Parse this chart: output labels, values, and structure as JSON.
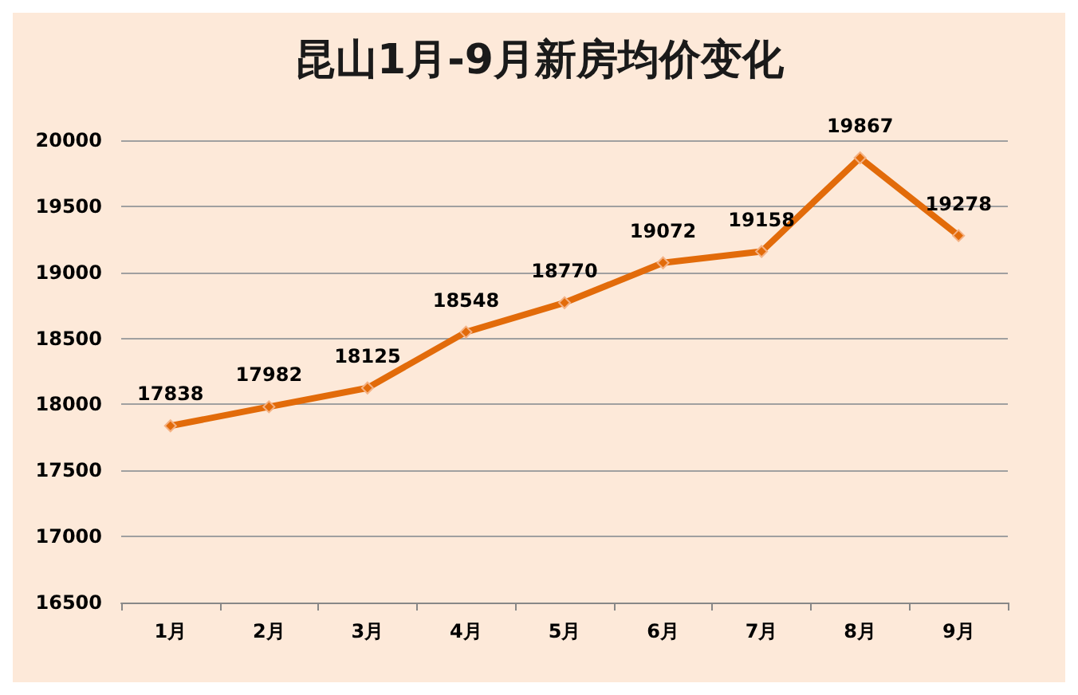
{
  "chart_data": {
    "type": "line",
    "title": "昆山1月-9月新房均价变化",
    "categories": [
      "1月",
      "2月",
      "3月",
      "4月",
      "5月",
      "6月",
      "7月",
      "8月",
      "9月"
    ],
    "series": [
      {
        "color": "#e26b0a",
        "values": [
          17838,
          17982,
          18125,
          18548,
          18770,
          19072,
          19158,
          19867,
          19278
        ]
      }
    ],
    "ylim": [
      16500,
      20000
    ],
    "yticks": [
      16500,
      17000,
      17500,
      18000,
      18500,
      19000,
      19500,
      20000
    ],
    "grid": "y",
    "data_labels": true,
    "marker": "diamond",
    "line_style": "solid"
  }
}
